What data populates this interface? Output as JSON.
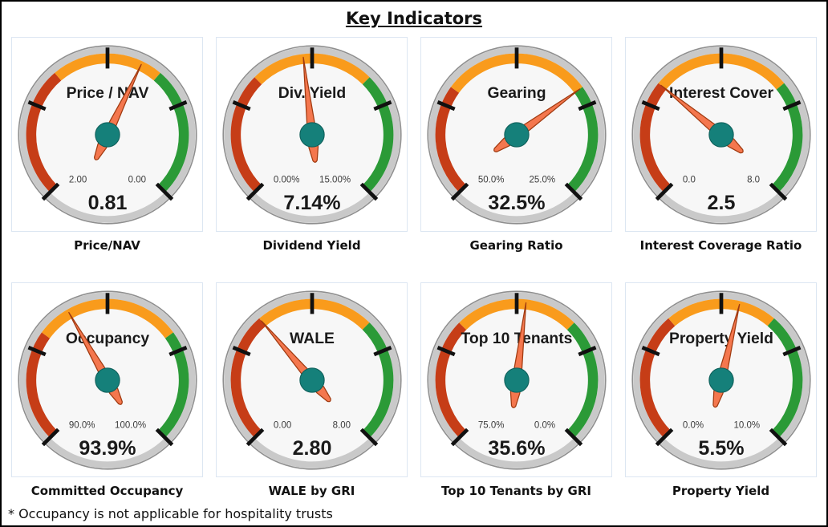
{
  "title": "Key Indicators",
  "footnote": "* Occupancy is not applicable for hospitality trusts",
  "colors": {
    "red": "#C63D17",
    "orange": "#F99B1C",
    "green": "#2B9A37",
    "needle_fill": "#F4774E",
    "needle_stroke": "#A03A10",
    "hub_fill": "#15807A",
    "hub_stroke": "#0E5E59",
    "rim": "#C9C9C9",
    "rim_edge": "#8F8F8F",
    "face": "#F7F7F7",
    "tick": "#111111",
    "panel_border": "#DCE6F2"
  },
  "chart_data": [
    {
      "type": "gauge",
      "title": "Price / NAV",
      "caption": "Price/NAV",
      "value": 0.81,
      "value_display": "0.81",
      "scale_start": 2.0,
      "scale_end": 0.0,
      "start_label": "2.00",
      "end_label": "0.00",
      "zones": [
        {
          "color": "red",
          "from": 2.0,
          "to": 1.3
        },
        {
          "color": "orange",
          "from": 1.3,
          "to": 0.7
        },
        {
          "color": "green",
          "from": 0.7,
          "to": 0.0
        }
      ]
    },
    {
      "type": "gauge",
      "title": "Div. Yield",
      "caption": "Dividend Yield",
      "value": 7.14,
      "value_display": "7.14%",
      "scale_start": 0.0,
      "scale_end": 15.0,
      "start_label": "0.00%",
      "end_label": "15.00%",
      "zones": [
        {
          "color": "red",
          "from": 0.0,
          "to": 5.0
        },
        {
          "color": "orange",
          "from": 5.0,
          "to": 10.0
        },
        {
          "color": "green",
          "from": 10.0,
          "to": 15.0
        }
      ]
    },
    {
      "type": "gauge",
      "title": "Gearing",
      "caption": "Gearing Ratio",
      "value": 32.5,
      "value_display": "32.5%",
      "scale_start": 50.0,
      "scale_end": 25.0,
      "start_label": "50.0%",
      "end_label": "25.0%",
      "zones": [
        {
          "color": "red",
          "from": 50.0,
          "to": 42.5
        },
        {
          "color": "orange",
          "from": 42.5,
          "to": 32.5
        },
        {
          "color": "green",
          "from": 32.5,
          "to": 25.0
        }
      ]
    },
    {
      "type": "gauge",
      "title": "Interest Cover",
      "caption": "Interest Coverage Ratio",
      "value": 2.5,
      "value_display": "2.5",
      "scale_start": 0.0,
      "scale_end": 8.0,
      "start_label": "0.0",
      "end_label": "8.0",
      "zones": [
        {
          "color": "red",
          "from": 0.0,
          "to": 2.5
        },
        {
          "color": "orange",
          "from": 2.5,
          "to": 5.5
        },
        {
          "color": "green",
          "from": 5.5,
          "to": 8.0
        }
      ]
    },
    {
      "type": "gauge",
      "title": "Occupancy",
      "caption": "Committed Occupancy",
      "value": 93.9,
      "value_display": "93.9%",
      "scale_start": 90.0,
      "scale_end": 100.0,
      "start_label": "90.0%",
      "end_label": "100.0%",
      "zones": [
        {
          "color": "red",
          "from": 90.0,
          "to": 93.0
        },
        {
          "color": "orange",
          "from": 93.0,
          "to": 97.0
        },
        {
          "color": "green",
          "from": 97.0,
          "to": 100.0
        }
      ]
    },
    {
      "type": "gauge",
      "title": "WALE",
      "caption": "WALE by GRI",
      "value": 2.8,
      "value_display": "2.80",
      "scale_start": 0.0,
      "scale_end": 8.0,
      "start_label": "0.00",
      "end_label": "8.00",
      "zones": [
        {
          "color": "red",
          "from": 0.0,
          "to": 2.8
        },
        {
          "color": "orange",
          "from": 2.8,
          "to": 5.33
        },
        {
          "color": "green",
          "from": 5.33,
          "to": 8.0
        }
      ]
    },
    {
      "type": "gauge",
      "title": "Top 10 Tenants",
      "caption": "Top 10 Tenants by GRI",
      "value": 35.6,
      "value_display": "35.6%",
      "scale_start": 75.0,
      "scale_end": 0.0,
      "start_label": "75.0%",
      "end_label": "0.0%",
      "zones": [
        {
          "color": "red",
          "from": 75.0,
          "to": 50.0
        },
        {
          "color": "orange",
          "from": 50.0,
          "to": 25.0
        },
        {
          "color": "green",
          "from": 25.0,
          "to": 0.0
        }
      ]
    },
    {
      "type": "gauge",
      "title": "Property Yield",
      "caption": "Property Yield",
      "value": 5.5,
      "value_display": "5.5%",
      "scale_start": 0.0,
      "scale_end": 10.0,
      "start_label": "0.0%",
      "end_label": "10.0%",
      "zones": [
        {
          "color": "red",
          "from": 0.0,
          "to": 3.5
        },
        {
          "color": "orange",
          "from": 3.5,
          "to": 6.5
        },
        {
          "color": "green",
          "from": 6.5,
          "to": 10.0
        }
      ]
    }
  ]
}
